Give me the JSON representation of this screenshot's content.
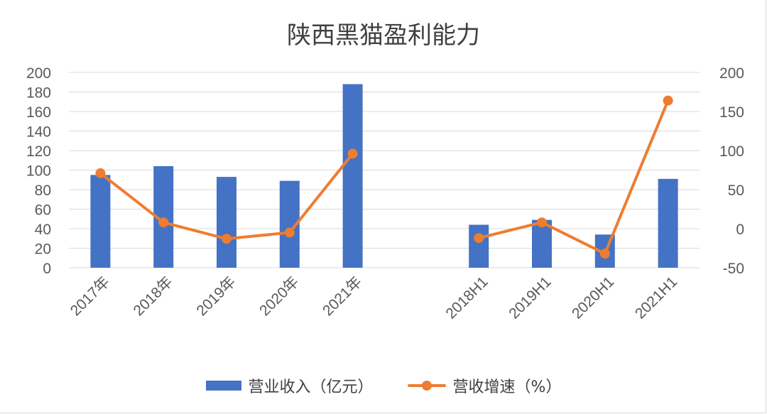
{
  "chart_data": {
    "type": "bar+line",
    "title": "陕西黑猫盈利能力",
    "categories": [
      "2017年",
      "2018年",
      "2019年",
      "2020年",
      "2021年",
      "",
      "2018H1",
      "2019H1",
      "2020H1",
      "2021H1"
    ],
    "series": [
      {
        "name": "营业收入（亿元）",
        "type": "bar",
        "axis": "left",
        "color": "#4472C4",
        "values": [
          95,
          104,
          93,
          89,
          188,
          null,
          44,
          49,
          34,
          91
        ]
      },
      {
        "name": "营收增速（%）",
        "type": "line",
        "axis": "right",
        "color": "#ED7D31",
        "values": [
          71,
          8,
          -13,
          -5,
          96,
          null,
          -12,
          8,
          -32,
          164
        ]
      }
    ],
    "y_left": {
      "min": 0,
      "max": 200,
      "ticks": [
        "0",
        "20",
        "40",
        "60",
        "80",
        "100",
        "120",
        "140",
        "160",
        "180",
        "200"
      ]
    },
    "y_right": {
      "min": -50,
      "max": 200,
      "ticks": [
        "-50",
        "0",
        "50",
        "100",
        "150",
        "200"
      ]
    },
    "grid": true,
    "legend_position": "bottom"
  },
  "legend": {
    "bar_label": "营业收入（亿元）",
    "line_label": "营收增速（%）"
  },
  "colors": {
    "bar": "#4472C4",
    "line": "#ED7D31",
    "grid": "#d9d9d9",
    "text": "#595959"
  }
}
